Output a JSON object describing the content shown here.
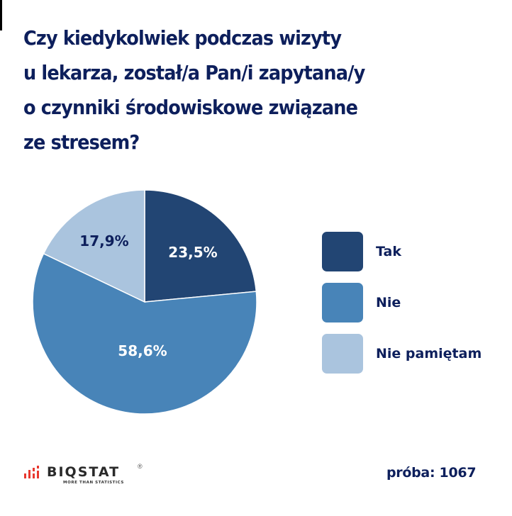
{
  "title": {
    "lines": [
      "Czy kiedykolwiek podczas wizyty",
      "u lekarza, został/a Pan/i zapytana/y",
      "o czynniki środowiskowe związane",
      "ze stresem?"
    ]
  },
  "chart_data": {
    "type": "pie",
    "title": "Czy kiedykolwiek podczas wizyty u lekarza, został/a Pan/i zapytana/y o czynniki środowiskowe związane ze stresem?",
    "categories": [
      "Tak",
      "Nie",
      "Nie pamiętam"
    ],
    "values": [
      23.5,
      58.6,
      17.9
    ],
    "labels": [
      "23,5%",
      "58,6%",
      "17,9%"
    ],
    "colors": [
      "#224573",
      "#4884b8",
      "#aac4de"
    ],
    "label_colors": [
      "#ffffff",
      "#ffffff",
      "#0d1f5c"
    ],
    "start_angle": "12 o'clock, clockwise",
    "legend_position": "right"
  },
  "legend": {
    "items": [
      {
        "label": "Tak",
        "color": "#224573"
      },
      {
        "label": "Nie",
        "color": "#4884b8"
      },
      {
        "label": "Nie pamiętam",
        "color": "#aac4de"
      }
    ]
  },
  "footer": {
    "logo_text": "BIQSTAT",
    "logo_reg": "®",
    "logo_tagline": "MORE THAN STATISTICS",
    "sample_label": "próba: 1067"
  },
  "colors": {
    "title": "#0d1f5c",
    "logo_accent": "#e8382f"
  }
}
